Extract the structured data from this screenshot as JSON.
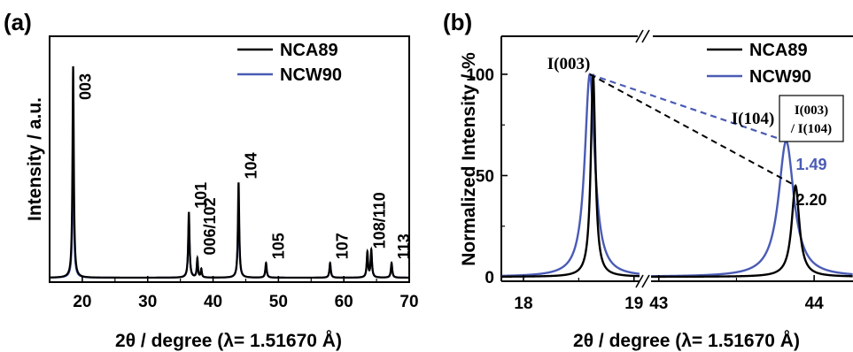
{
  "chart_data": [
    {
      "type": "line",
      "panel_label": "(a)",
      "xlabel": "2θ / degree (λ= 1.51670 Å)",
      "ylabel": "Intensity / a.u.",
      "xlim": [
        15,
        70
      ],
      "xticks": [
        20,
        30,
        40,
        50,
        60,
        70
      ],
      "grid": false,
      "legend_position": "top-right",
      "colors": {
        "NCA89": "#000000",
        "NCW90": "#4a5bb5"
      },
      "series": [
        {
          "name": "NCA89",
          "peaks": [
            {
              "x": 18.6,
              "h": 1.0,
              "w": 0.12
            },
            {
              "x": 36.3,
              "h": 0.31,
              "w": 0.12
            },
            {
              "x": 37.6,
              "h": 0.09,
              "w": 0.1
            },
            {
              "x": 38.2,
              "h": 0.04,
              "w": 0.1
            },
            {
              "x": 43.9,
              "h": 0.45,
              "w": 0.12
            },
            {
              "x": 48.1,
              "h": 0.07,
              "w": 0.12
            },
            {
              "x": 57.9,
              "h": 0.07,
              "w": 0.12
            },
            {
              "x": 63.6,
              "h": 0.12,
              "w": 0.12
            },
            {
              "x": 64.2,
              "h": 0.13,
              "w": 0.12
            },
            {
              "x": 67.3,
              "h": 0.07,
              "w": 0.12
            }
          ]
        },
        {
          "name": "NCW90",
          "peaks": [
            {
              "x": 18.6,
              "h": 0.55,
              "w": 0.14
            },
            {
              "x": 36.3,
              "h": 0.26,
              "w": 0.14
            },
            {
              "x": 37.6,
              "h": 0.08,
              "w": 0.12
            },
            {
              "x": 38.2,
              "h": 0.03,
              "w": 0.12
            },
            {
              "x": 43.9,
              "h": 0.33,
              "w": 0.14
            },
            {
              "x": 48.1,
              "h": 0.06,
              "w": 0.14
            },
            {
              "x": 57.9,
              "h": 0.06,
              "w": 0.14
            },
            {
              "x": 63.6,
              "h": 0.1,
              "w": 0.14
            },
            {
              "x": 64.2,
              "h": 0.11,
              "w": 0.14
            },
            {
              "x": 67.3,
              "h": 0.06,
              "w": 0.14
            }
          ]
        }
      ],
      "annotations": [
        {
          "text": "003",
          "x": 18.6
        },
        {
          "text": "101",
          "x": 36.3
        },
        {
          "text": "006/102",
          "x": 37.6
        },
        {
          "text": "104",
          "x": 43.9
        },
        {
          "text": "105",
          "x": 48.1
        },
        {
          "text": "107",
          "x": 57.9
        },
        {
          "text": "108/110",
          "x": 63.6
        },
        {
          "text": "113",
          "x": 67.3
        }
      ]
    },
    {
      "type": "line",
      "panel_label": "(b)",
      "xlabel": "2θ / degree (λ= 1.51670 Å)",
      "ylabel": "Normalized Intensity / %",
      "ylim": [
        -5,
        115
      ],
      "yticks": [
        0,
        50,
        100
      ],
      "broken_x_axis": {
        "left_range": [
          17.8,
          19.05
        ],
        "right_range": [
          42.95,
          44.25
        ],
        "left_ticks": [
          18,
          19
        ],
        "right_ticks": [
          43,
          44
        ]
      },
      "grid": false,
      "legend_position": "top-right",
      "colors": {
        "NCA89": "#000000",
        "NCW90": "#4a5bb5"
      },
      "series": [
        {
          "name": "NCA89",
          "peaks": [
            {
              "x": 18.63,
              "h": 100,
              "w": 0.025
            },
            {
              "x": 43.88,
              "h": 45,
              "w": 0.03
            }
          ]
        },
        {
          "name": "NCW90",
          "peaks": [
            {
              "x": 18.6,
              "h": 100,
              "w": 0.055
            },
            {
              "x": 43.82,
              "h": 67,
              "w": 0.06
            }
          ]
        }
      ],
      "annotations": [
        {
          "text": "I(003)",
          "x": 18.6,
          "y": 100
        },
        {
          "text": "I(104)",
          "x": 43.82,
          "y": 67
        }
      ],
      "ratio_box": {
        "label_line1": "I(003)",
        "label_line2": "/ I(104)"
      },
      "ratios": [
        {
          "series": "NCW90",
          "value": "1.49"
        },
        {
          "series": "NCA89",
          "value": "2.20"
        }
      ]
    }
  ]
}
